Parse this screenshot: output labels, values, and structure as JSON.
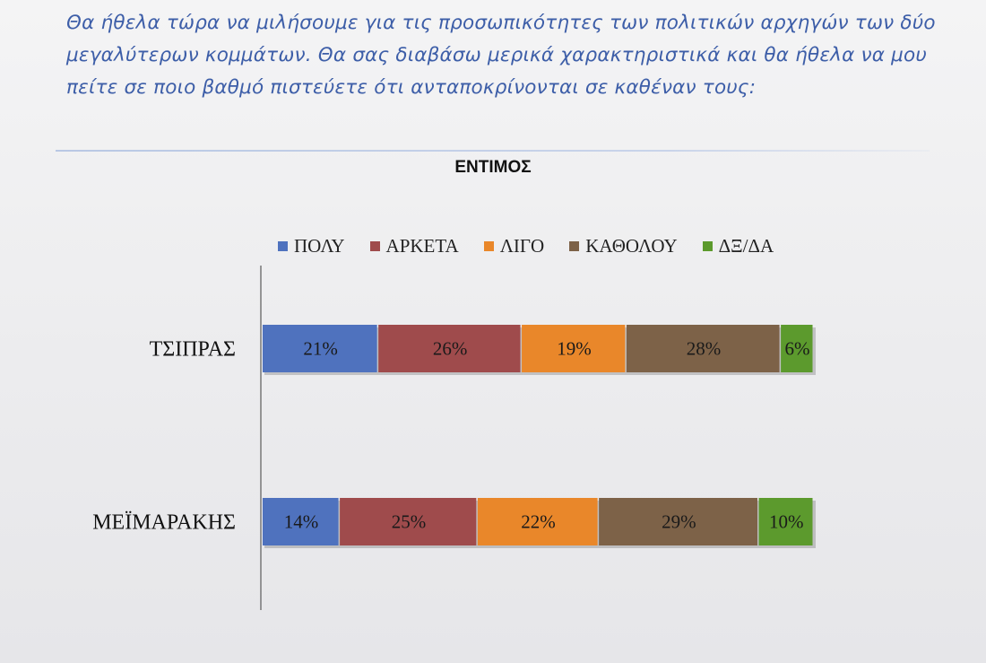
{
  "question_text": "Θα ήθελα τώρα να μιλήσουμε για τις προσωπικότητες των πολιτικών αρχηγών των δύο μεγαλύτερων κομμάτων. Θα σας διαβάσω μερικά χαρακτηριστικά και θα ήθελα να μου πείτε σε ποιο βαθμό πιστεύετε ότι ανταποκρίνονται σε καθέναν τους:",
  "chart_data": {
    "type": "bar",
    "orientation": "horizontal",
    "stacked": true,
    "title": "ΕΝΤΙΜΟΣ",
    "categories": [
      "ΤΣΙΠΡΑΣ",
      "ΜΕΪΜΑΡΑΚΗΣ"
    ],
    "series": [
      {
        "name": "ΠΟΛΥ",
        "color": "#4f72be",
        "values": [
          21,
          14
        ]
      },
      {
        "name": "ΑΡΚΕΤΑ",
        "color": "#9f4b4c",
        "values": [
          26,
          25
        ]
      },
      {
        "name": "ΛΙΓΟ",
        "color": "#e9872a",
        "values": [
          19,
          22
        ]
      },
      {
        "name": "ΚΑΘΟΛΟΥ",
        "color": "#7d6248",
        "values": [
          28,
          29
        ]
      },
      {
        "name": "ΔΞ/ΔΑ",
        "color": "#5c9a2d",
        "values": [
          6,
          10
        ]
      }
    ],
    "value_suffix": "%",
    "legend_position": "top",
    "grid": false
  }
}
